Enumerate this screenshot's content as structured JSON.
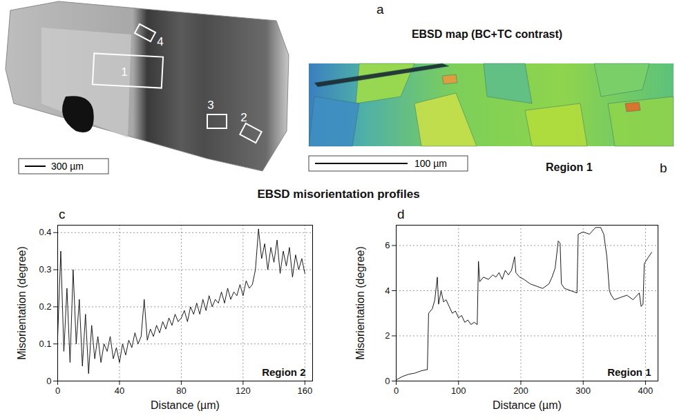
{
  "title": "EBSD misorientation profiles",
  "panel_a": {
    "letter": "a",
    "boxes": [
      "1",
      "2",
      "3",
      "4"
    ],
    "scale_bar": "300 µm"
  },
  "panel_b": {
    "letter": "b",
    "title": "EBSD map (BC+TC contrast)",
    "scale_bar": "100 µm",
    "region": "Region 1"
  },
  "chart_data": [
    {
      "type": "line",
      "panel": "c",
      "annotation": "Region 2",
      "x_label": "Distance (µm)",
      "y_label": "Misorientation (degree)",
      "xlim": [
        0,
        165
      ],
      "xticks": [
        0,
        40,
        80,
        120,
        160
      ],
      "ylim": [
        0,
        0.42
      ],
      "yticks": [
        0,
        0.1,
        0.2,
        0.3,
        0.4
      ],
      "grid": true,
      "color": "#000000",
      "x": [
        0,
        2,
        4,
        6,
        8,
        10,
        12,
        14,
        16,
        18,
        20,
        22,
        24,
        26,
        28,
        30,
        32,
        34,
        36,
        38,
        40,
        42,
        44,
        46,
        48,
        50,
        52,
        54,
        56,
        58,
        60,
        62,
        64,
        66,
        68,
        70,
        72,
        74,
        76,
        78,
        80,
        82,
        84,
        86,
        88,
        90,
        92,
        94,
        96,
        98,
        100,
        102,
        104,
        106,
        108,
        110,
        112,
        114,
        116,
        118,
        120,
        122,
        124,
        126,
        128,
        130,
        132,
        134,
        136,
        138,
        140,
        142,
        144,
        146,
        148,
        150,
        152,
        154,
        156,
        158,
        160
      ],
      "values": [
        0.12,
        0.35,
        0.08,
        0.25,
        0.05,
        0.3,
        0.1,
        0.22,
        0.04,
        0.18,
        0.02,
        0.15,
        0.06,
        0.12,
        0.05,
        0.1,
        0.08,
        0.12,
        0.06,
        0.09,
        0.05,
        0.1,
        0.07,
        0.11,
        0.09,
        0.13,
        0.1,
        0.12,
        0.22,
        0.11,
        0.14,
        0.12,
        0.15,
        0.13,
        0.16,
        0.14,
        0.17,
        0.15,
        0.18,
        0.16,
        0.17,
        0.19,
        0.16,
        0.2,
        0.18,
        0.21,
        0.18,
        0.22,
        0.19,
        0.23,
        0.2,
        0.22,
        0.21,
        0.24,
        0.21,
        0.25,
        0.22,
        0.24,
        0.23,
        0.26,
        0.23,
        0.27,
        0.25,
        0.26,
        0.3,
        0.41,
        0.33,
        0.37,
        0.3,
        0.36,
        0.32,
        0.38,
        0.29,
        0.35,
        0.31,
        0.36,
        0.28,
        0.34,
        0.3,
        0.33,
        0.29
      ]
    },
    {
      "type": "line",
      "panel": "d",
      "annotation": "Region 1",
      "x_label": "Distance (µm)",
      "y_label": "Misorientation (degree)",
      "xlim": [
        0,
        420
      ],
      "xticks": [
        0,
        100,
        200,
        300,
        400
      ],
      "ylim": [
        0,
        6.9
      ],
      "yticks": [
        0,
        2,
        4,
        6
      ],
      "grid": true,
      "color": "#000000",
      "x": [
        0,
        10,
        20,
        30,
        40,
        48,
        50,
        52,
        58,
        62,
        66,
        68,
        72,
        76,
        80,
        85,
        90,
        95,
        100,
        105,
        110,
        115,
        120,
        125,
        130,
        132,
        134,
        140,
        148,
        155,
        160,
        165,
        170,
        175,
        180,
        185,
        190,
        192,
        198,
        205,
        215,
        225,
        235,
        245,
        250,
        255,
        260,
        263,
        265,
        270,
        280,
        290,
        292,
        300,
        310,
        320,
        328,
        333,
        338,
        342,
        345,
        350,
        360,
        370,
        380,
        390,
        393,
        396,
        398,
        405,
        410
      ],
      "values": [
        0.05,
        0.2,
        0.3,
        0.35,
        0.45,
        0.5,
        0.5,
        3.0,
        3.2,
        3.6,
        4.6,
        3.4,
        4.0,
        3.5,
        3.6,
        3.3,
        3.0,
        3.1,
        2.8,
        2.9,
        2.6,
        2.7,
        2.5,
        2.6,
        2.5,
        5.3,
        4.4,
        4.6,
        4.5,
        4.7,
        4.6,
        4.8,
        4.5,
        4.9,
        4.7,
        4.9,
        5.5,
        4.8,
        4.6,
        4.5,
        4.3,
        4.2,
        4.1,
        4.3,
        4.6,
        5.0,
        6.2,
        6.1,
        4.3,
        4.1,
        4.0,
        3.9,
        6.5,
        6.6,
        6.5,
        6.8,
        6.8,
        6.5,
        5.5,
        4.0,
        3.8,
        3.6,
        3.7,
        3.8,
        3.6,
        3.9,
        3.3,
        3.4,
        5.2,
        5.5,
        5.7
      ]
    }
  ]
}
